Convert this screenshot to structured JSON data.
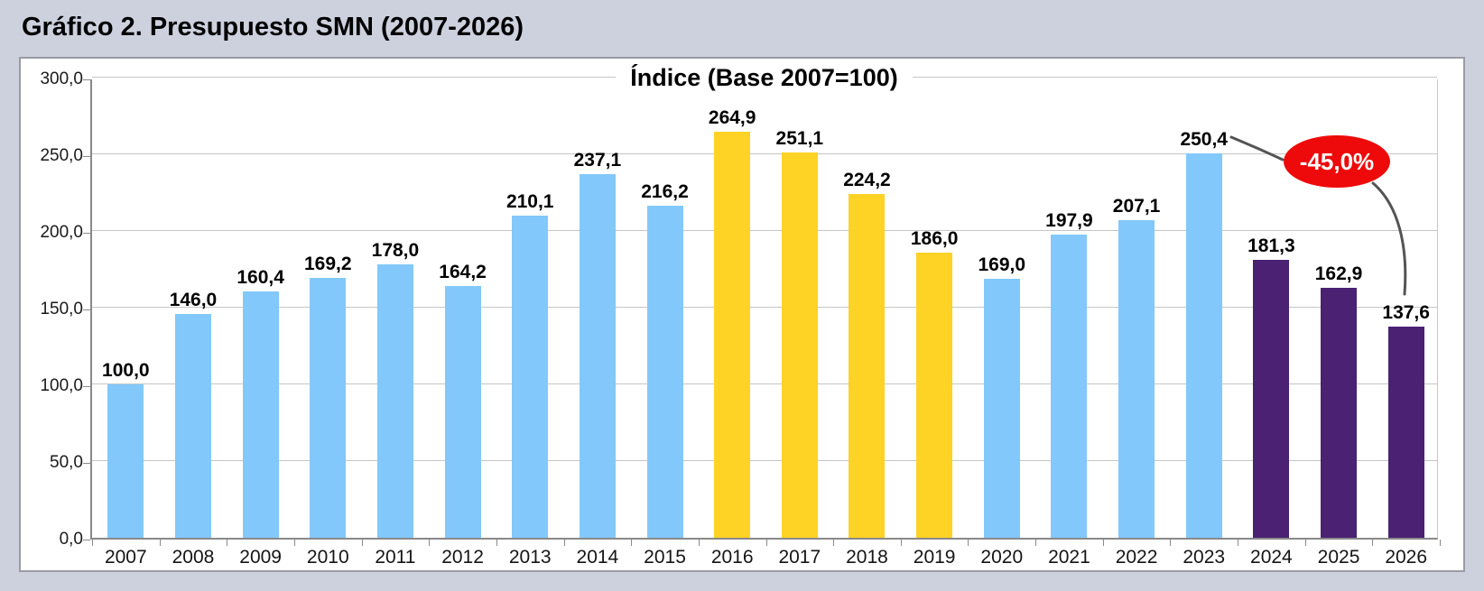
{
  "figure": {
    "title": "Gráfico 2. Presupuesto SMN (2007-2026)"
  },
  "chart_data": {
    "type": "bar",
    "title": "Índice (Base 2007=100)",
    "categories": [
      "2007",
      "2008",
      "2009",
      "2010",
      "2011",
      "2012",
      "2013",
      "2014",
      "2015",
      "2016",
      "2017",
      "2018",
      "2019",
      "2020",
      "2021",
      "2022",
      "2023",
      "2024",
      "2025",
      "2026"
    ],
    "values": [
      100.0,
      146.0,
      160.4,
      169.2,
      178.0,
      164.2,
      210.1,
      237.1,
      216.2,
      264.9,
      251.1,
      224.2,
      186.0,
      169.0,
      197.9,
      207.1,
      250.4,
      181.3,
      162.9,
      137.6
    ],
    "value_labels": [
      "100,0",
      "146,0",
      "160,4",
      "169,2",
      "178,0",
      "164,2",
      "210,1",
      "237,1",
      "216,2",
      "264,9",
      "251,1",
      "224,2",
      "186,0",
      "169,0",
      "197,9",
      "207,1",
      "250,4",
      "181,3",
      "162,9",
      "137,6"
    ],
    "bar_color_groups": [
      "blue",
      "blue",
      "blue",
      "blue",
      "blue",
      "blue",
      "blue",
      "blue",
      "blue",
      "yellow",
      "yellow",
      "yellow",
      "yellow",
      "blue",
      "blue",
      "blue",
      "blue",
      "purple",
      "purple",
      "purple"
    ],
    "ylim": [
      0,
      300
    ],
    "y_tick_step": 50,
    "y_tick_labels": [
      "0,0",
      "50,0",
      "100,0",
      "150,0",
      "200,0",
      "250,0",
      "300,0"
    ],
    "grid": "horizontal-gridlines-on",
    "legend": "none",
    "annotation": {
      "text": "-45,0%"
    }
  },
  "annotation": {
    "text": "-45,0%"
  },
  "colors": {
    "bar_blue": "#82C8FA",
    "bar_yellow": "#FFD226",
    "bar_purple": "#4A2173",
    "annotation_red": "#EE0A0A",
    "annotation_text": "#FFFFFF",
    "background": "#CDD1DE",
    "panel": "#FFFFFF",
    "grid_line": "#C6C6C6",
    "axis_line": "#898989",
    "connector": "#545454"
  }
}
